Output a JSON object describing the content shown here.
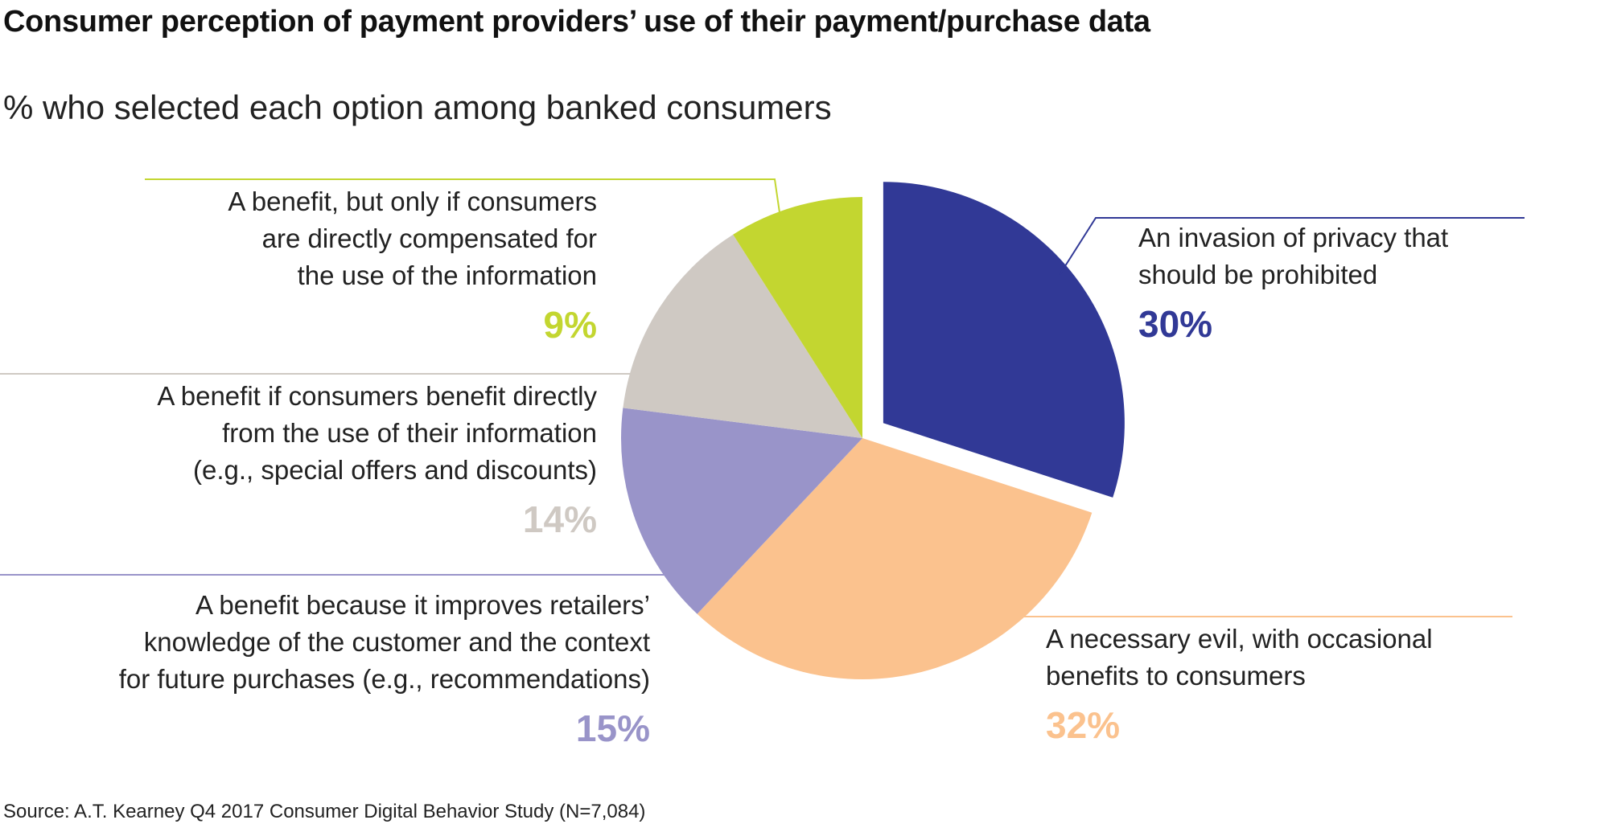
{
  "chart_data": {
    "type": "pie",
    "title": "Consumer perception of payment providers’ use of their payment/purchase data",
    "subtitle": "% who selected each option among banked consumers",
    "unit": "%",
    "slices": [
      {
        "label_lines": [
          "An invasion of privacy that",
          "should be prohibited"
        ],
        "value": 30,
        "display": "30%",
        "color": "#313996",
        "exploded": true
      },
      {
        "label_lines": [
          "A necessary evil, with occasional",
          "benefits to consumers"
        ],
        "value": 32,
        "display": "32%",
        "color": "#FBC28E",
        "exploded": false
      },
      {
        "label_lines": [
          "A benefit because it improves retailers’",
          "knowledge of the customer and the context",
          "for future purchases (e.g., recommendations)"
        ],
        "value": 15,
        "display": "15%",
        "color": "#9994C9",
        "exploded": false
      },
      {
        "label_lines": [
          "A benefit if consumers benefit directly",
          "from the use of their information",
          "(e.g., special offers and discounts)"
        ],
        "value": 14,
        "display": "14%",
        "color": "#CFC9C3",
        "exploded": false
      },
      {
        "label_lines": [
          "A benefit, but only if consumers",
          "are directly compensated for",
          "the use of the information"
        ],
        "value": 9,
        "display": "9%",
        "color": "#C3D630",
        "exploded": false
      }
    ],
    "legend": "none",
    "source": "Source: A.T. Kearney Q4 2017 Consumer Digital Behavior Study (N=7,084)"
  }
}
